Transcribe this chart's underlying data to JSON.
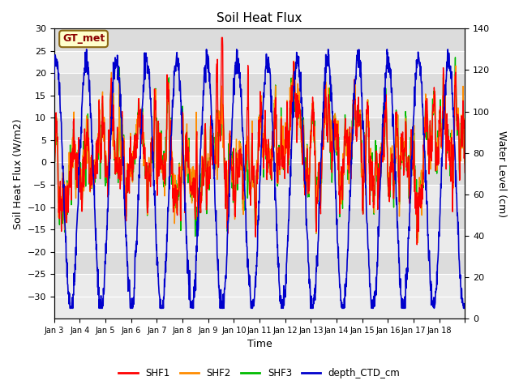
{
  "title": "Soil Heat Flux",
  "xlabel": "Time",
  "ylabel_left": "Soil Heat Flux (W/m2)",
  "ylabel_right": "Water Level (cm)",
  "ylim_left": [
    -35,
    30
  ],
  "ylim_right": [
    0,
    140
  ],
  "yticks_left": [
    -30,
    -25,
    -20,
    -15,
    -10,
    -5,
    0,
    5,
    10,
    15,
    20,
    25,
    30
  ],
  "yticks_right": [
    0,
    20,
    40,
    60,
    80,
    100,
    120,
    140
  ],
  "annotation_text": "GT_met",
  "annotation_color": "#8B0000",
  "annotation_bg": "#FFFFCC",
  "annotation_border": "#8B6914",
  "bg_color": "#FFFFFF",
  "plot_bg_light": "#EBEBEB",
  "plot_bg_dark": "#DCDCDC",
  "grid_color": "#FFFFFF",
  "colors": {
    "SHF1": "#FF0000",
    "SHF2": "#FF8C00",
    "SHF3": "#00BB00",
    "depth_CTD_cm": "#0000CC"
  },
  "line_widths": {
    "SHF1": 1.0,
    "SHF2": 1.0,
    "SHF3": 1.0,
    "depth_CTD_cm": 1.2
  },
  "num_days": 16,
  "pts_per_day": 96,
  "seed": 42
}
